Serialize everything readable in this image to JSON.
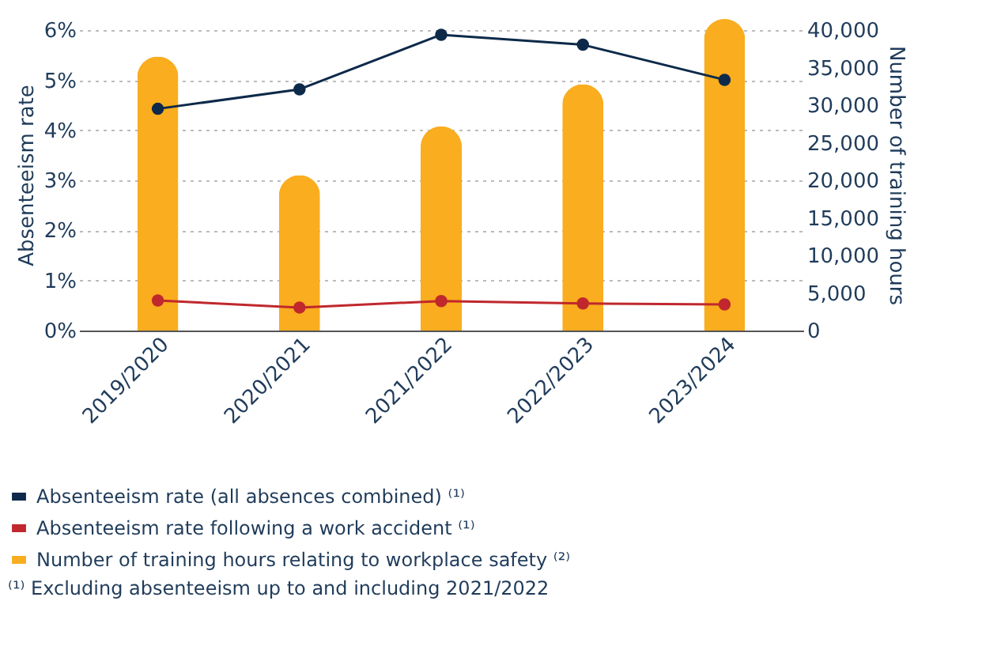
{
  "chart_data": {
    "type": "line",
    "categories": [
      "2019/2020",
      "2020/2021",
      "2021/2022",
      "2022/2023",
      "2023/2024"
    ],
    "ylabel": "Absenteeism rate",
    "y2label": "Number of training hours",
    "series": [
      {
        "name": "Absenteeism rate (all absences combined) ⁽¹⁾",
        "color": "#0d2a4a",
        "values": [
          4.43,
          4.82,
          5.91,
          5.71,
          5.01
        ]
      },
      {
        "name": "Absenteeism rate following a work accident ⁽¹⁾",
        "color": "#c0282d",
        "values": [
          0.6,
          0.46,
          0.59,
          0.54,
          0.52
        ]
      },
      {
        "name": "Number of training hours relating to workplace safety ⁽²⁾",
        "type": "bar",
        "axis": "y2",
        "color": "#f9ad1f",
        "values": [
          36500,
          20700,
          27200,
          32800,
          41500
        ]
      }
    ],
    "ylim": [
      0,
      6.225
    ],
    "yticks": [
      {
        "value": 0,
        "label": "0%"
      },
      {
        "value": 1,
        "label": "1%"
      },
      {
        "value": 2,
        "label": "2%"
      },
      {
        "value": 3,
        "label": "3%"
      },
      {
        "value": 4,
        "label": "4%"
      },
      {
        "value": 5,
        "label": "5%"
      },
      {
        "value": 6,
        "label": "6%"
      }
    ],
    "y2lim": [
      0,
      41500
    ],
    "y2ticks": [
      {
        "value": 0,
        "label": "0"
      },
      {
        "value": 5000,
        "label": "5,000"
      },
      {
        "value": 10000,
        "label": "10,000"
      },
      {
        "value": 15000,
        "label": "15,000"
      },
      {
        "value": 20000,
        "label": "20,000"
      },
      {
        "value": 25000,
        "label": "25,000"
      },
      {
        "value": 30000,
        "label": "30,000"
      },
      {
        "value": 35000,
        "label": "35,000"
      },
      {
        "value": 40000,
        "label": "40,000"
      }
    ],
    "grid": "y",
    "legend": "bottom",
    "marker": "circle",
    "annotations": [
      "⁽¹⁾ Excluding absenteeism up to and including 2021/2022"
    ]
  }
}
